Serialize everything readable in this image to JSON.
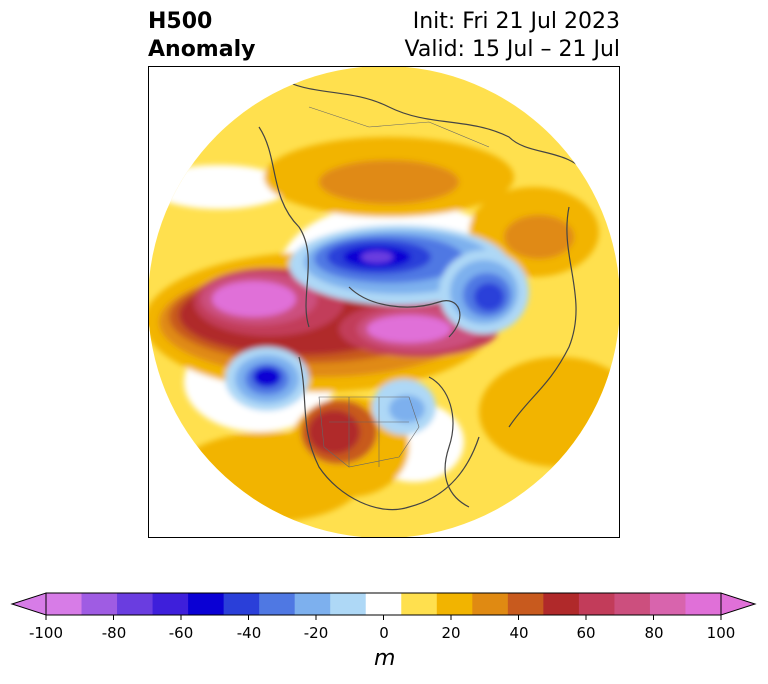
{
  "title": {
    "left_line1": "H500",
    "left_line2": "Anomaly",
    "right_line1": "Init: Fri 21 Jul 2023",
    "right_line2": "Valid: 15 Jul – 21 Jul"
  },
  "colorbar": {
    "min": -100,
    "max": 100,
    "step": 10,
    "unit": "m",
    "ticks": [
      "-100",
      "-80",
      "-60",
      "-40",
      "-20",
      "0",
      "20",
      "40",
      "60",
      "80",
      "100"
    ],
    "colors": [
      "#d77ce7",
      "#9f5ce3",
      "#6a3de0",
      "#3e1fdb",
      "#0a00d4",
      "#2a3fd9",
      "#4f78e3",
      "#7db0ee",
      "#aed8f6",
      "#ffffff",
      "#ffe04e",
      "#f2b400",
      "#e08a12",
      "#c85a1e",
      "#b0292a",
      "#c23c5a",
      "#cc4f7e",
      "#d864ad",
      "#e070d8"
    ]
  },
  "map": {
    "projection": "polar-stereographic-north",
    "field": "500 hPa geopotential height anomaly"
  }
}
